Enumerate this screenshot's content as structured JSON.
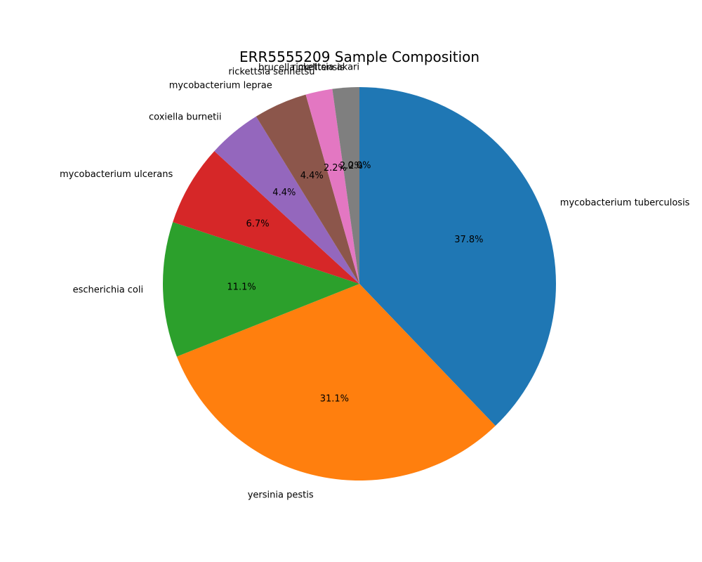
{
  "chart_data": {
    "type": "pie",
    "title": "ERR5555209 Sample Composition",
    "start_angle_deg": 90,
    "direction": "clockwise",
    "autopct_format": "%1.1f%%",
    "slices": [
      {
        "label": "mycobacterium tuberculosis",
        "value": 37.8,
        "pct_text": "37.8%",
        "color": "#1f77b4"
      },
      {
        "label": "yersinia pestis",
        "value": 31.1,
        "pct_text": "31.1%",
        "color": "#ff7f0e"
      },
      {
        "label": "escherichia coli",
        "value": 11.1,
        "pct_text": "11.1%",
        "color": "#2ca02c"
      },
      {
        "label": "mycobacterium ulcerans",
        "value": 6.7,
        "pct_text": "6.7%",
        "color": "#d62728"
      },
      {
        "label": "coxiella burnetii",
        "value": 4.4,
        "pct_text": "4.4%",
        "color": "#9467bd"
      },
      {
        "label": "mycobacterium leprae",
        "value": 4.4,
        "pct_text": "4.4%",
        "color": "#8c564b"
      },
      {
        "label": "rickettsia sennetsu",
        "value": 2.2,
        "pct_text": "2.2%",
        "color": "#e377c2"
      },
      {
        "label": "brucella melitensis",
        "value": 2.2,
        "pct_text": "2.2%",
        "color": "#7f7f7f"
      },
      {
        "label": "rickettsia akari",
        "value": 0.0,
        "pct_text": "0.0%",
        "color": "#bcbd22"
      }
    ]
  }
}
